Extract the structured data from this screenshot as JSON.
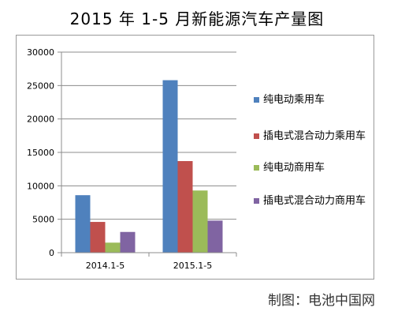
{
  "chart_data": {
    "type": "bar",
    "title": "2015 年 1-5 月新能源汽车产量图",
    "categories": [
      "2014.1-5",
      "2015.1-5"
    ],
    "series": [
      {
        "name": "纯电动乘用车",
        "values": [
          8600,
          25800
        ],
        "color": "#4f81bd"
      },
      {
        "name": "插电式混合动力乘用车",
        "values": [
          4600,
          13700
        ],
        "color": "#c0504d"
      },
      {
        "name": "纯电动商用车",
        "values": [
          1500,
          9300
        ],
        "color": "#9bbb59"
      },
      {
        "name": "插电式混合动力商用车",
        "values": [
          3100,
          4800
        ],
        "color": "#8064a2"
      }
    ],
    "ylim": [
      0,
      30000
    ],
    "yticks": [
      "0",
      "5000",
      "10000",
      "15000",
      "20000",
      "25000",
      "30000"
    ],
    "grid": true,
    "legend": "right"
  },
  "credit": "制图：电池中国网"
}
